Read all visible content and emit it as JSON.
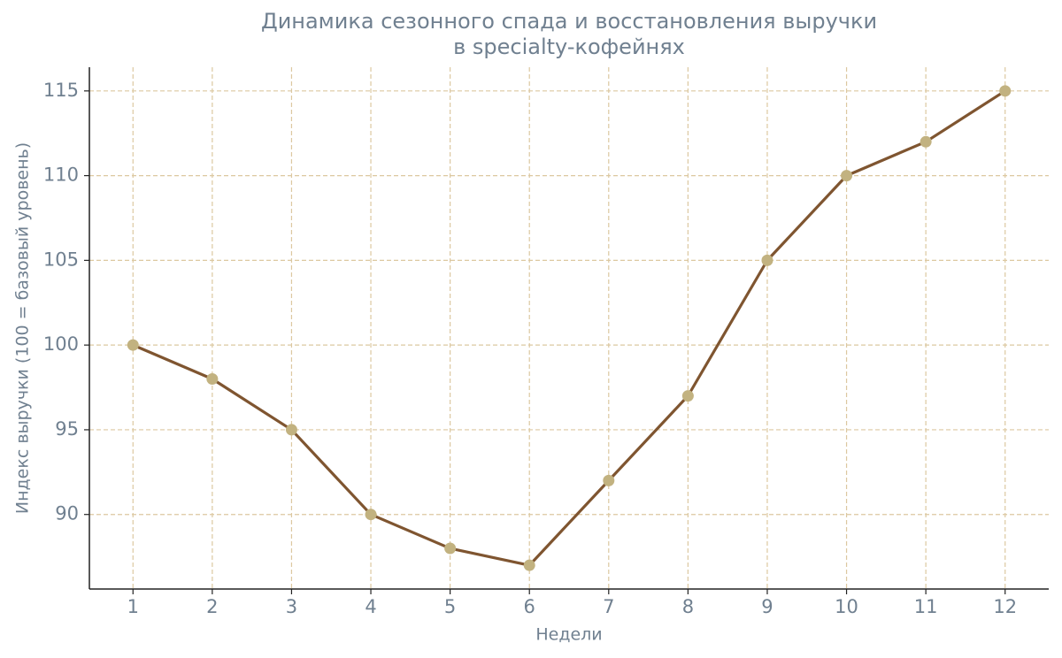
{
  "chart_data": {
    "type": "line",
    "title": "Динамика сезонного спада и восстановления выручки\nв specialty-кофейнях",
    "xlabel": "Недели",
    "ylabel": "Индекс выручки (100 = базовый уровень)",
    "x": [
      1,
      2,
      3,
      4,
      5,
      6,
      7,
      8,
      9,
      10,
      11,
      12
    ],
    "series": [
      {
        "name": "Индекс выручки",
        "color": "#7f5530",
        "marker_color": "#c2b280",
        "values": [
          100,
          98,
          95,
          90,
          88,
          87,
          92,
          97,
          105,
          110,
          112,
          115
        ]
      }
    ],
    "xlim": [
      0.45,
      12.55
    ],
    "xticks": [
      1,
      2,
      3,
      4,
      5,
      6,
      7,
      8,
      9,
      10,
      11,
      12
    ],
    "ylim": [
      85.6,
      116.4
    ],
    "yticks": [
      90,
      95,
      100,
      105,
      110,
      115
    ],
    "grid": true,
    "grid_color": "#dcc8a0"
  }
}
